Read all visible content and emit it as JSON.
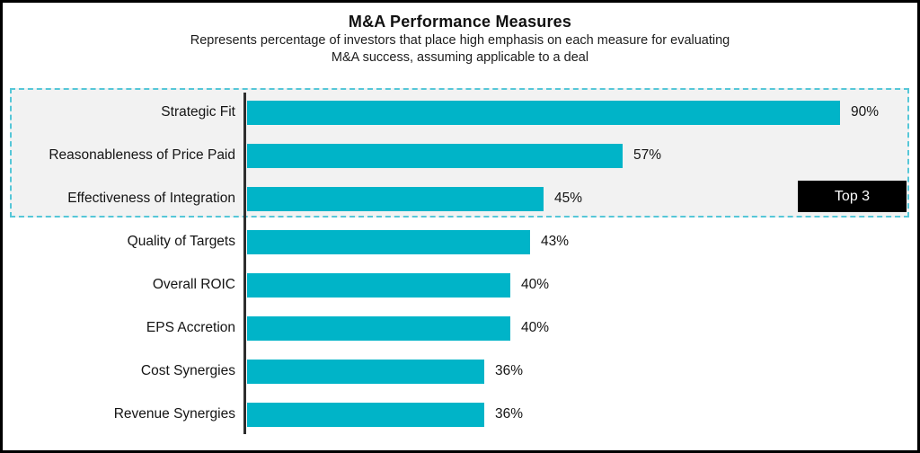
{
  "page": {
    "title": "M&A Performance Measures",
    "subtitle_lines": [
      "Represents percentage of investors that place high emphasis on each measure for evaluating",
      "M&A success, assuming applicable to a deal"
    ]
  },
  "chart_data": {
    "type": "bar",
    "orientation": "horizontal",
    "title": "M&A Performance Measures",
    "subtitle": "Represents percentage of investors that place high emphasis on each measure for evaluating M&A success, assuming applicable to a deal",
    "categories": [
      "Strategic Fit",
      "Reasonableness of Price Paid",
      "Effectiveness of Integration",
      "Quality of Targets",
      "Overall ROIC",
      "EPS Accretion",
      "Cost Synergies",
      "Revenue Synergies"
    ],
    "values": [
      90,
      57,
      45,
      43,
      40,
      40,
      36,
      36
    ],
    "value_labels": [
      "90%",
      "57%",
      "45%",
      "43%",
      "40%",
      "40%",
      "36%",
      "36%"
    ],
    "xlabel": "",
    "ylabel": "",
    "xlim": [
      0,
      100
    ],
    "grid": false,
    "legend": "none",
    "bar_color": "#00b4c8",
    "highlight": {
      "label": "Top 3",
      "rows": [
        0,
        1,
        2
      ],
      "border_color": "#56c7d8",
      "background": "#f2f2f2",
      "badge_background": "#000000",
      "badge_text_color": "#ffffff"
    }
  }
}
